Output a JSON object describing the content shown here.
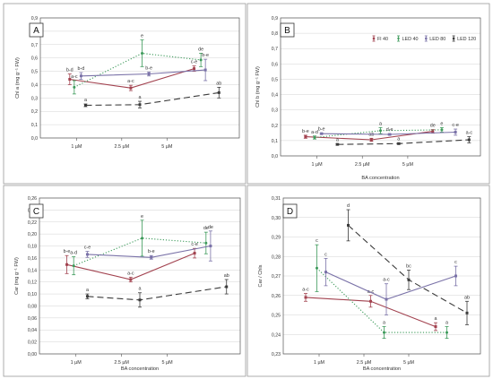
{
  "concentrations": [
    "1 µM",
    "2.5 µM",
    "5 µM"
  ],
  "series_style": [
    {
      "name": "Fl 40",
      "color": "#a2424f",
      "dash": "",
      "marker": "square"
    },
    {
      "name": "LED 40",
      "color": "#3c9a5a",
      "dash": "1.2 2",
      "marker": "circle"
    },
    {
      "name": "LED 80",
      "color": "#7a72a8",
      "dash": "",
      "marker": "square"
    },
    {
      "name": "LED 120",
      "color": "#3b3b3b",
      "dash": "7 4",
      "marker": "square"
    }
  ],
  "chart_data": [
    {
      "type": "line",
      "panel": "A",
      "xlabel": "",
      "ylabel": "Chl a (mg g⁻¹ FW)",
      "ylim": [
        0,
        0.9
      ],
      "yticks": [
        0,
        0.1,
        0.2,
        0.3,
        0.4,
        0.5,
        0.6,
        0.7,
        0.8,
        0.9
      ],
      "ytick_decimals": 1,
      "legend": false,
      "series": [
        {
          "name": "Fl 40",
          "x": [
            0.85,
            2.2,
            3.6
          ],
          "y": [
            0.44,
            0.375,
            0.52
          ],
          "err": [
            0.04,
            0.02,
            0.02
          ],
          "labels": [
            "b-d",
            "a-c",
            "c-e"
          ]
        },
        {
          "name": "LED 40",
          "x": [
            0.95,
            2.45,
            3.75
          ],
          "y": [
            0.38,
            0.635,
            0.585
          ],
          "err": [
            0.05,
            0.1,
            0.05
          ],
          "labels": [
            "a-c",
            "e",
            "de"
          ]
        },
        {
          "name": "LED 80",
          "x": [
            1.1,
            2.6,
            3.85
          ],
          "y": [
            0.465,
            0.48,
            0.51
          ],
          "err": [
            0.025,
            0.015,
            0.08
          ],
          "labels": [
            "b-d",
            "b-e",
            "b-e"
          ]
        },
        {
          "name": "LED 120",
          "x": [
            1.2,
            2.4,
            4.15
          ],
          "y": [
            0.245,
            0.25,
            0.34
          ],
          "err": [
            0.01,
            0.025,
            0.04
          ],
          "labels": [
            "a",
            "a",
            "ab"
          ]
        }
      ]
    },
    {
      "type": "line",
      "panel": "B",
      "xlabel": "BA concentration",
      "ylabel": "Chl b (mg g⁻¹ FW)",
      "ylim": [
        0,
        0.9
      ],
      "yticks": [
        0,
        0.1,
        0.2,
        0.3,
        0.4,
        0.5,
        0.6,
        0.7,
        0.8,
        0.9
      ],
      "ytick_decimals": 1,
      "legend": true,
      "series": [
        {
          "name": "Fl 40",
          "x": [
            0.75,
            2.2,
            3.55
          ],
          "y": [
            0.125,
            0.105,
            0.16
          ],
          "err": [
            0.01,
            0.01,
            0.012
          ],
          "labels": [
            "b-e",
            "ab",
            "de"
          ]
        },
        {
          "name": "LED 40",
          "x": [
            0.95,
            2.4,
            3.75
          ],
          "y": [
            0.12,
            0.165,
            0.17
          ],
          "err": [
            0.01,
            0.02,
            0.015
          ],
          "labels": [
            "a-d",
            "a",
            "e"
          ]
        },
        {
          "name": "LED 80",
          "x": [
            1.1,
            2.6,
            4.05
          ],
          "y": [
            0.145,
            0.14,
            0.155
          ],
          "err": [
            0.005,
            0.005,
            0.02
          ],
          "labels": [
            "b-e",
            "d-e",
            "c-e"
          ]
        },
        {
          "name": "LED 120",
          "x": [
            1.45,
            2.8,
            4.35
          ],
          "y": [
            0.075,
            0.08,
            0.105
          ],
          "err": [
            0.005,
            0.005,
            0.02
          ],
          "labels": [
            "a",
            "a",
            "a-c"
          ]
        }
      ]
    },
    {
      "type": "line",
      "panel": "C",
      "xlabel": "BA concentration",
      "ylabel": "Car (mg g⁻¹ FW)",
      "ylim": [
        0,
        0.26
      ],
      "yticks": [
        0,
        0.02,
        0.04,
        0.06,
        0.08,
        0.1,
        0.12,
        0.14,
        0.16,
        0.18,
        0.2,
        0.22,
        0.24,
        0.26
      ],
      "ytick_decimals": 2,
      "legend": false,
      "series": [
        {
          "name": "Fl 40",
          "x": [
            0.8,
            2.2,
            3.6
          ],
          "y": [
            0.149,
            0.124,
            0.168
          ],
          "err": [
            0.015,
            0.004,
            0.008
          ],
          "labels": [
            "b-e",
            "a-c",
            "c-e"
          ]
        },
        {
          "name": "LED 40",
          "x": [
            0.95,
            2.45,
            3.85
          ],
          "y": [
            0.147,
            0.193,
            0.185
          ],
          "err": [
            0.015,
            0.03,
            0.018
          ],
          "labels": [
            "a-d",
            "e",
            "de"
          ]
        },
        {
          "name": "LED 80",
          "x": [
            1.25,
            2.65,
            3.95
          ],
          "y": [
            0.166,
            0.161,
            0.18
          ],
          "err": [
            0.005,
            0.003,
            0.025
          ],
          "labels": [
            "c-e",
            "b-e",
            "de"
          ]
        },
        {
          "name": "LED 120",
          "x": [
            1.25,
            2.4,
            4.3
          ],
          "y": [
            0.096,
            0.09,
            0.112
          ],
          "err": [
            0.004,
            0.012,
            0.012
          ],
          "labels": [
            "a",
            "a",
            "ab"
          ]
        }
      ]
    },
    {
      "type": "line",
      "panel": "D",
      "xlabel": "BA concentration",
      "ylabel": "Car / Chls",
      "ylim": [
        0.23,
        0.31
      ],
      "yticks": [
        0.23,
        0.24,
        0.25,
        0.26,
        0.27,
        0.28,
        0.29,
        0.3,
        0.31
      ],
      "ytick_decimals": 2,
      "legend": false,
      "series": [
        {
          "name": "Fl 40",
          "x": [
            0.7,
            2.15,
            3.6
          ],
          "y": [
            0.259,
            0.257,
            0.244
          ],
          "err": [
            0.002,
            0.003,
            0.002
          ],
          "labels": [
            "a-c",
            "a-c",
            "a"
          ]
        },
        {
          "name": "LED 40",
          "x": [
            0.95,
            2.45,
            3.85
          ],
          "y": [
            0.274,
            0.241,
            0.241
          ],
          "err": [
            0.012,
            0.003,
            0.003
          ],
          "labels": [
            "c",
            "a",
            "a"
          ]
        },
        {
          "name": "LED 80",
          "x": [
            1.15,
            2.5,
            4.05
          ],
          "y": [
            0.272,
            0.258,
            0.27
          ],
          "err": [
            0.007,
            0.008,
            0.005
          ],
          "labels": [
            "c",
            "a-c",
            "c"
          ]
        },
        {
          "name": "LED 120",
          "x": [
            1.65,
            3.0,
            4.3
          ],
          "y": [
            0.296,
            0.268,
            0.251
          ],
          "err": [
            0.008,
            0.005,
            0.006
          ],
          "labels": [
            "d",
            "bc",
            "ab"
          ]
        }
      ]
    }
  ]
}
